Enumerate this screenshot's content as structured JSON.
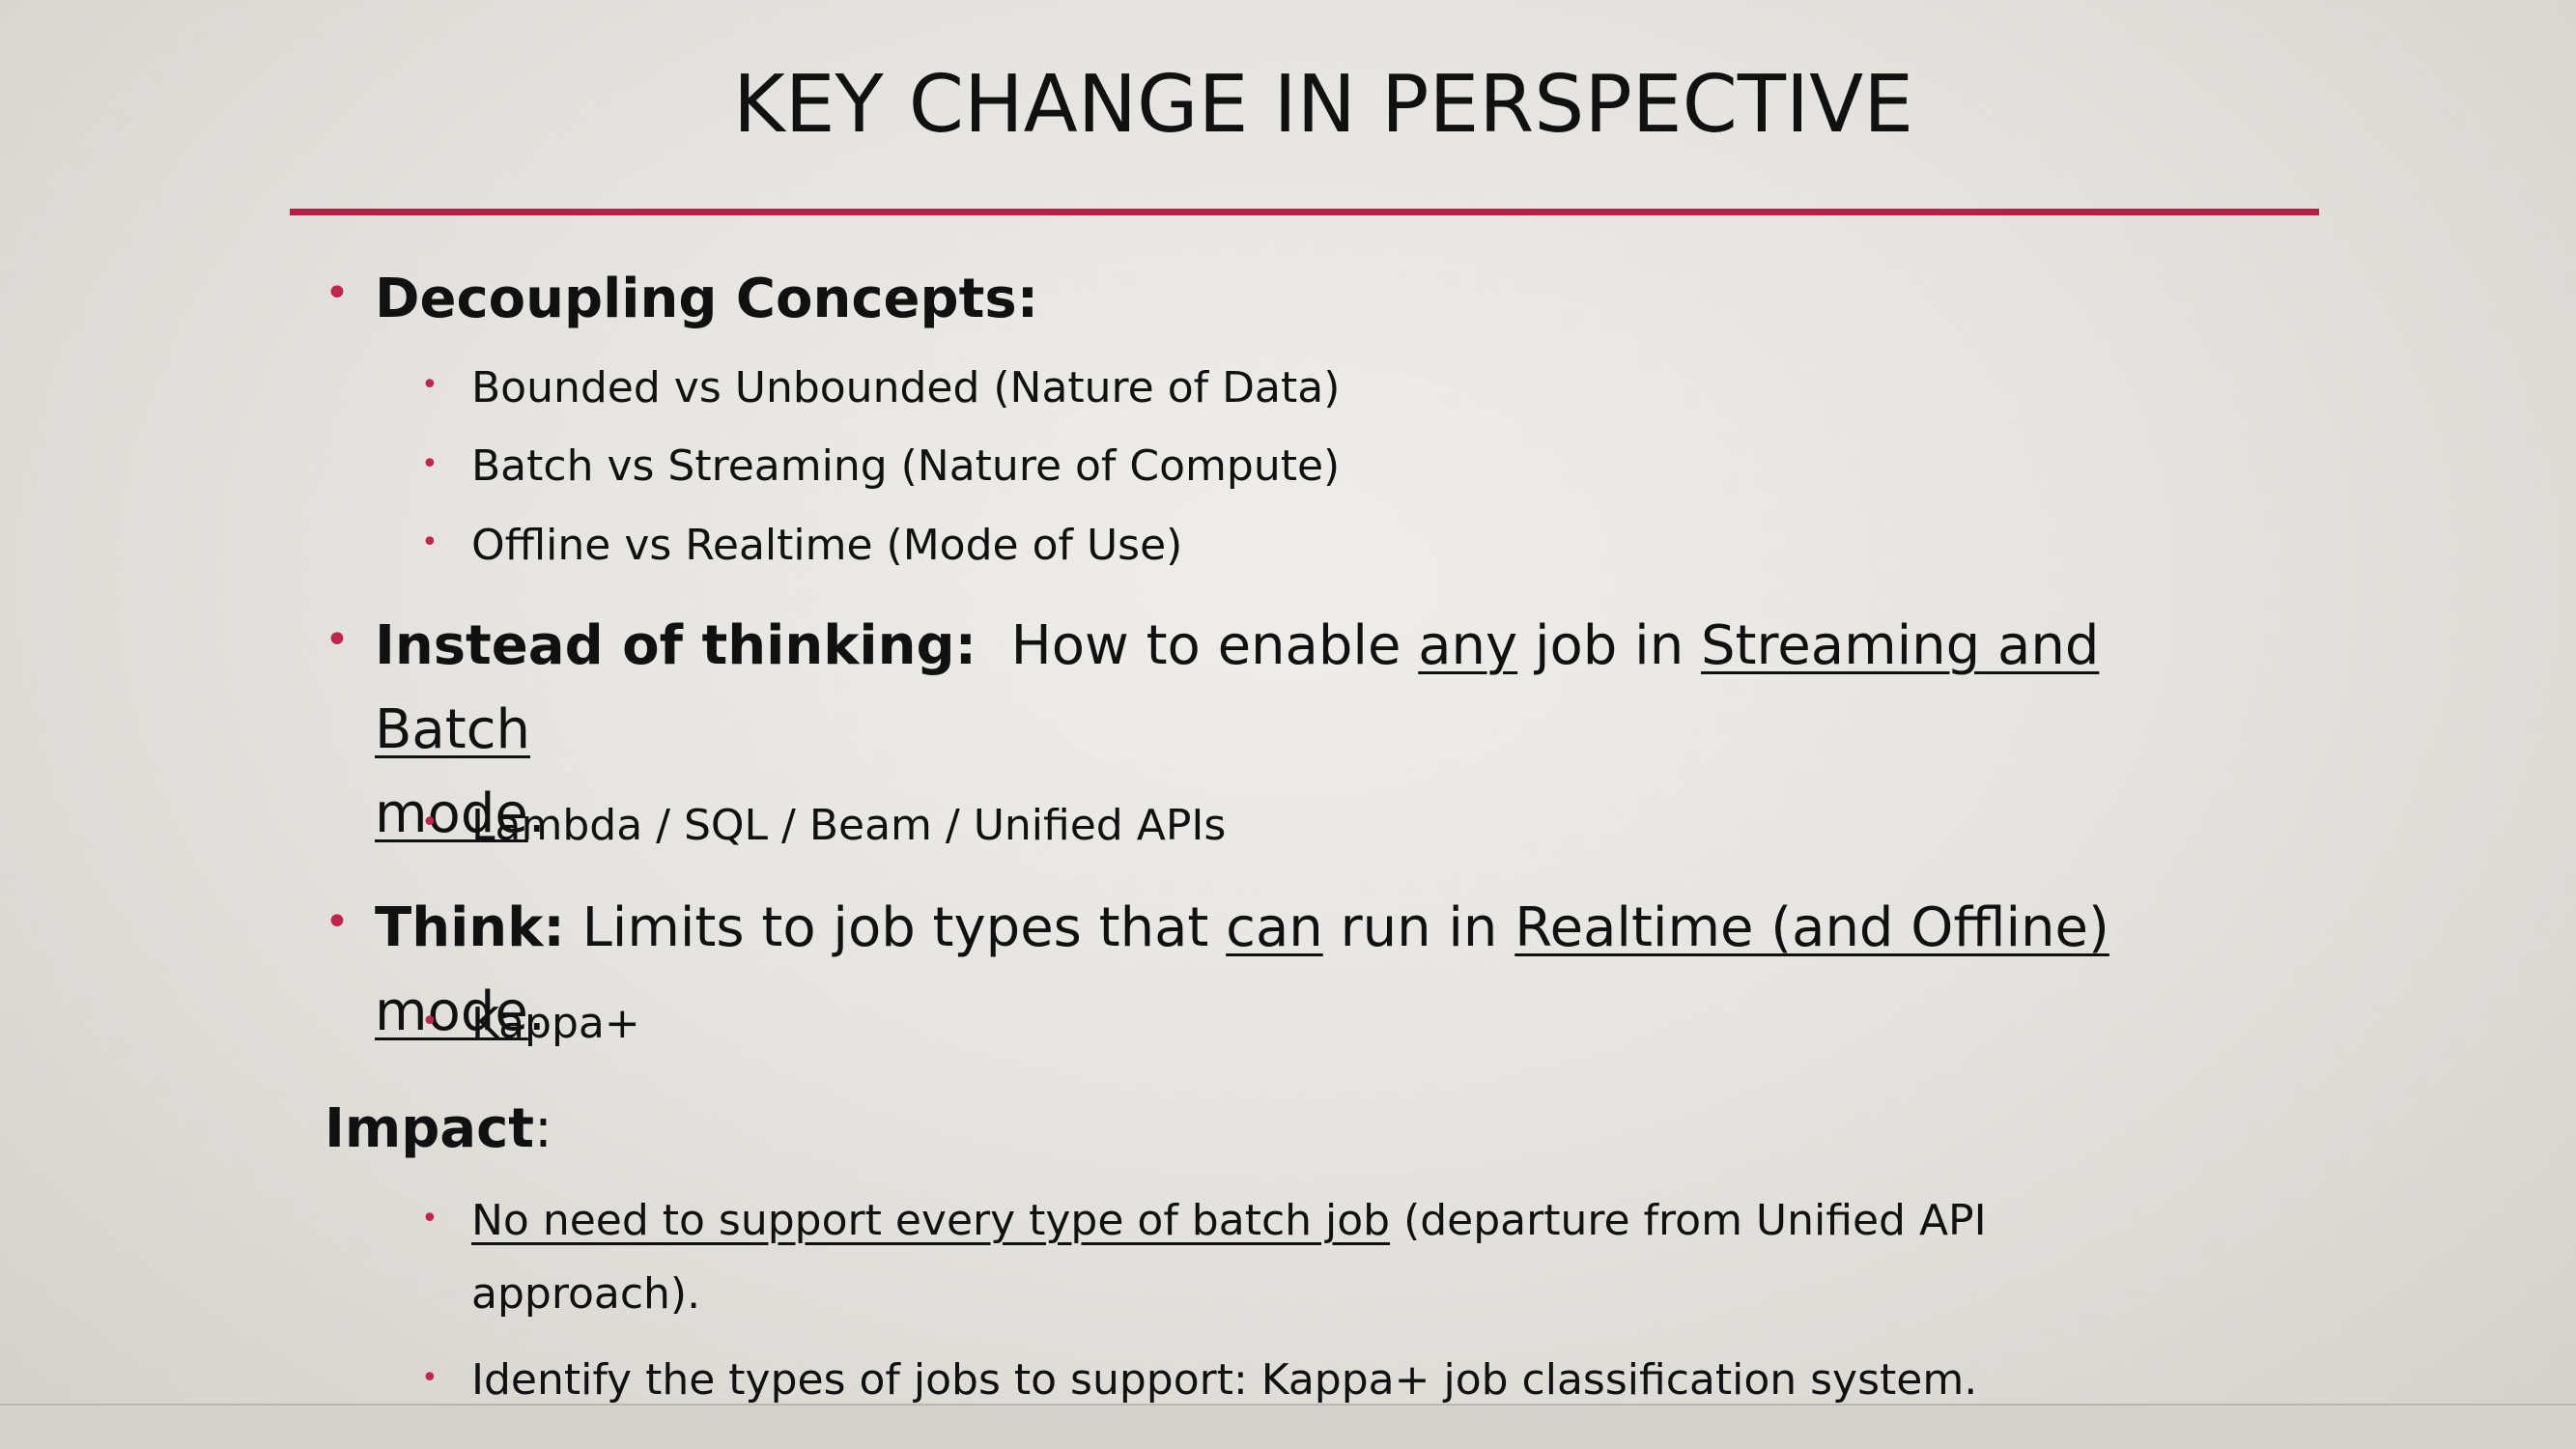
{
  "slide": {
    "title": "KEY CHANGE IN PERSPECTIVE",
    "colors": {
      "accent": "#b81f45",
      "bullet": "#c0264b",
      "text": "#111111"
    },
    "decoupling": {
      "heading": "Decoupling Concepts:",
      "items": [
        "Bounded vs Unbounded (Nature of Data)",
        "Batch vs Streaming (Nature of Compute)",
        "Offline vs Realtime (Mode of Use)"
      ]
    },
    "instead": {
      "heading": "Instead of thinking:",
      "t1": "How to enable ",
      "u1": "any",
      "t2": " job in ",
      "u2a": "Streaming and Batch",
      "u2b": "mode",
      "t3": ".",
      "sub": "Lambda / SQL / Beam / Unified APIs"
    },
    "think": {
      "heading": "Think:",
      "t1": " Limits to job types that ",
      "u1": "can",
      "t2": " run in ",
      "u2": "Realtime (and Offline) mode",
      "t3": ".",
      "sub": "Kappa+"
    },
    "impact": {
      "heading": "Impact",
      "colon": ":",
      "item1_u": "No need to support every type of batch job",
      "item1_t": " (departure from Unified API",
      "item1_t2": "approach).",
      "item2": "Identify the types of jobs to support:  Kappa+ job classification system."
    }
  }
}
